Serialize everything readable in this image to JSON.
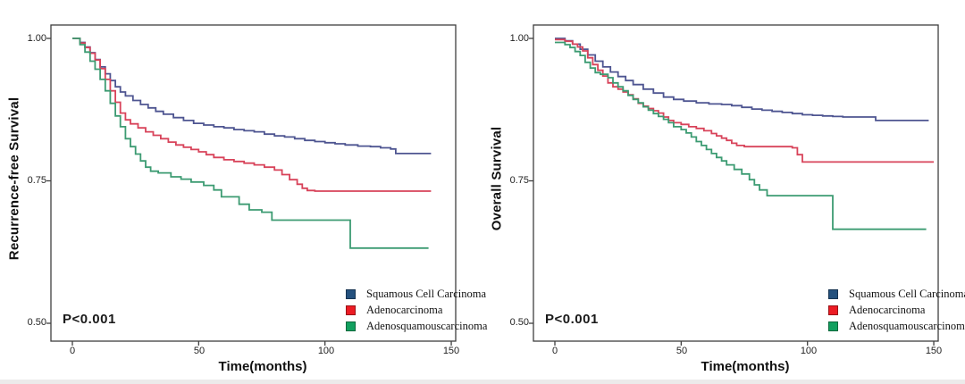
{
  "figure_colors": {
    "background": "#ffffff",
    "frame": "#3f3f3f"
  },
  "legend": {
    "items": [
      {
        "label": "Squamous Cell Carcinoma",
        "swatch_color": "#24517e",
        "line_color": "#4e5591"
      },
      {
        "label": "Adenocarcinoma",
        "swatch_color": "#ec1c24",
        "line_color": "#d8435a"
      },
      {
        "label": "Adenosquamouscarcinoma",
        "swatch_color": "#12a05f",
        "line_color": "#3c9b72"
      }
    ]
  },
  "chart_data": [
    {
      "type": "line",
      "subtype": "kaplan-meier-step",
      "ylabel": "Recurrence-free Survival",
      "xlabel": "Time(months)",
      "annotation": "P<0.001",
      "x_tick_labels": [
        "0",
        "50",
        "100",
        "150"
      ],
      "y_tick_labels": [
        "1.00",
        "0.75",
        "0.50"
      ],
      "x_ticks": [
        0,
        50,
        100,
        150
      ],
      "y_ticks": [
        1.0,
        0.75,
        0.5
      ],
      "xlim": [
        -8,
        152
      ],
      "ylim": [
        0.468,
        1.023
      ],
      "grid": false,
      "legend_position": "lower-right",
      "series": [
        {
          "name": "Squamous Cell Carcinoma",
          "points": [
            [
              0,
              1.0
            ],
            [
              3,
              0.993
            ],
            [
              5,
              0.985
            ],
            [
              7,
              0.975
            ],
            [
              9,
              0.963
            ],
            [
              11,
              0.95
            ],
            [
              13,
              0.938
            ],
            [
              15,
              0.926
            ],
            [
              17,
              0.915
            ],
            [
              19,
              0.906
            ],
            [
              21,
              0.899
            ],
            [
              24,
              0.891
            ],
            [
              27,
              0.884
            ],
            [
              30,
              0.878
            ],
            [
              33,
              0.872
            ],
            [
              36,
              0.867
            ],
            [
              40,
              0.861
            ],
            [
              44,
              0.856
            ],
            [
              48,
              0.851
            ],
            [
              52,
              0.848
            ],
            [
              56,
              0.845
            ],
            [
              60,
              0.843
            ],
            [
              64,
              0.84
            ],
            [
              68,
              0.838
            ],
            [
              72,
              0.836
            ],
            [
              76,
              0.832
            ],
            [
              80,
              0.829
            ],
            [
              84,
              0.827
            ],
            [
              88,
              0.824
            ],
            [
              92,
              0.821
            ],
            [
              96,
              0.819
            ],
            [
              100,
              0.817
            ],
            [
              104,
              0.815
            ],
            [
              108,
              0.813
            ],
            [
              113,
              0.811
            ],
            [
              118,
              0.81
            ],
            [
              122,
              0.808
            ],
            [
              126,
              0.806
            ],
            [
              128,
              0.798
            ],
            [
              142,
              0.798
            ]
          ]
        },
        {
          "name": "Adenocarcinoma",
          "points": [
            [
              0,
              1.0
            ],
            [
              3,
              0.992
            ],
            [
              5,
              0.984
            ],
            [
              7,
              0.974
            ],
            [
              9,
              0.962
            ],
            [
              11,
              0.947
            ],
            [
              13,
              0.928
            ],
            [
              15,
              0.908
            ],
            [
              17,
              0.888
            ],
            [
              19,
              0.869
            ],
            [
              21,
              0.857
            ],
            [
              23,
              0.85
            ],
            [
              26,
              0.843
            ],
            [
              29,
              0.836
            ],
            [
              32,
              0.83
            ],
            [
              35,
              0.824
            ],
            [
              38,
              0.818
            ],
            [
              41,
              0.813
            ],
            [
              44,
              0.809
            ],
            [
              47,
              0.805
            ],
            [
              50,
              0.801
            ],
            [
              53,
              0.796
            ],
            [
              56,
              0.791
            ],
            [
              60,
              0.787
            ],
            [
              64,
              0.784
            ],
            [
              68,
              0.781
            ],
            [
              72,
              0.778
            ],
            [
              76,
              0.774
            ],
            [
              80,
              0.769
            ],
            [
              83,
              0.761
            ],
            [
              86,
              0.752
            ],
            [
              89,
              0.744
            ],
            [
              91,
              0.737
            ],
            [
              93,
              0.733
            ],
            [
              96,
              0.732
            ],
            [
              142,
              0.732
            ]
          ]
        },
        {
          "name": "Adenosquamouscarcinoma",
          "points": [
            [
              0,
              1.0
            ],
            [
              3,
              0.989
            ],
            [
              5,
              0.976
            ],
            [
              7,
              0.96
            ],
            [
              9,
              0.946
            ],
            [
              11,
              0.928
            ],
            [
              13,
              0.908
            ],
            [
              15,
              0.886
            ],
            [
              17,
              0.864
            ],
            [
              19,
              0.845
            ],
            [
              21,
              0.824
            ],
            [
              23,
              0.81
            ],
            [
              25,
              0.797
            ],
            [
              27,
              0.785
            ],
            [
              29,
              0.774
            ],
            [
              31,
              0.767
            ],
            [
              34,
              0.764
            ],
            [
              39,
              0.757
            ],
            [
              43,
              0.753
            ],
            [
              47,
              0.748
            ],
            [
              52,
              0.742
            ],
            [
              56,
              0.734
            ],
            [
              59,
              0.722
            ],
            [
              66,
              0.709
            ],
            [
              70,
              0.699
            ],
            [
              75,
              0.695
            ],
            [
              79,
              0.681
            ],
            [
              108,
              0.681
            ],
            [
              110,
              0.632
            ],
            [
              141,
              0.632
            ]
          ]
        }
      ]
    },
    {
      "type": "line",
      "subtype": "kaplan-meier-step",
      "ylabel": "Overall Survival",
      "xlabel": "Time(months)",
      "annotation": "P<0.001",
      "x_tick_labels": [
        "0",
        "50",
        "100",
        "150"
      ],
      "y_tick_labels": [
        "1.00",
        "0.75",
        "0.50"
      ],
      "x_ticks": [
        0,
        50,
        100,
        150
      ],
      "y_ticks": [
        1.0,
        0.75,
        0.5
      ],
      "xlim": [
        -8,
        152
      ],
      "ylim": [
        0.468,
        1.023
      ],
      "grid": false,
      "legend_position": "lower-right",
      "series": [
        {
          "name": "Squamous Cell Carcinoma",
          "points": [
            [
              0,
              1.0
            ],
            [
              4,
              0.996
            ],
            [
              7,
              0.99
            ],
            [
              10,
              0.981
            ],
            [
              13,
              0.971
            ],
            [
              16,
              0.96
            ],
            [
              19,
              0.95
            ],
            [
              22,
              0.941
            ],
            [
              25,
              0.933
            ],
            [
              28,
              0.926
            ],
            [
              31,
              0.919
            ],
            [
              35,
              0.911
            ],
            [
              39,
              0.904
            ],
            [
              43,
              0.897
            ],
            [
              47,
              0.893
            ],
            [
              51,
              0.89
            ],
            [
              56,
              0.887
            ],
            [
              61,
              0.885
            ],
            [
              66,
              0.884
            ],
            [
              70,
              0.882
            ],
            [
              74,
              0.879
            ],
            [
              78,
              0.876
            ],
            [
              82,
              0.874
            ],
            [
              86,
              0.872
            ],
            [
              90,
              0.87
            ],
            [
              94,
              0.868
            ],
            [
              98,
              0.866
            ],
            [
              102,
              0.865
            ],
            [
              106,
              0.864
            ],
            [
              110,
              0.863
            ],
            [
              114,
              0.862
            ],
            [
              127,
              0.856
            ],
            [
              148,
              0.856
            ]
          ]
        },
        {
          "name": "Adenocarcinoma",
          "points": [
            [
              0,
              0.998
            ],
            [
              4,
              0.995
            ],
            [
              7,
              0.99
            ],
            [
              9,
              0.985
            ],
            [
              11,
              0.978
            ],
            [
              13,
              0.966
            ],
            [
              15,
              0.954
            ],
            [
              17,
              0.944
            ],
            [
              19,
              0.934
            ],
            [
              21,
              0.922
            ],
            [
              23,
              0.915
            ],
            [
              25,
              0.911
            ],
            [
              27,
              0.906
            ],
            [
              29,
              0.901
            ],
            [
              31,
              0.894
            ],
            [
              33,
              0.886
            ],
            [
              35,
              0.881
            ],
            [
              37,
              0.877
            ],
            [
              39,
              0.873
            ],
            [
              41,
              0.869
            ],
            [
              43,
              0.862
            ],
            [
              45,
              0.856
            ],
            [
              47,
              0.852
            ],
            [
              50,
              0.849
            ],
            [
              53,
              0.845
            ],
            [
              56,
              0.842
            ],
            [
              59,
              0.838
            ],
            [
              62,
              0.833
            ],
            [
              64,
              0.829
            ],
            [
              66,
              0.825
            ],
            [
              68,
              0.821
            ],
            [
              70,
              0.816
            ],
            [
              72,
              0.812
            ],
            [
              75,
              0.81
            ],
            [
              94,
              0.808
            ],
            [
              96,
              0.796
            ],
            [
              98,
              0.783
            ],
            [
              150,
              0.783
            ]
          ]
        },
        {
          "name": "Adenosquamouscarcinoma",
          "points": [
            [
              0,
              0.993
            ],
            [
              4,
              0.989
            ],
            [
              6,
              0.984
            ],
            [
              8,
              0.977
            ],
            [
              10,
              0.97
            ],
            [
              12,
              0.958
            ],
            [
              14,
              0.948
            ],
            [
              16,
              0.94
            ],
            [
              18,
              0.937
            ],
            [
              21,
              0.931
            ],
            [
              23,
              0.922
            ],
            [
              25,
              0.915
            ],
            [
              27,
              0.908
            ],
            [
              29,
              0.9
            ],
            [
              31,
              0.893
            ],
            [
              33,
              0.887
            ],
            [
              35,
              0.88
            ],
            [
              37,
              0.874
            ],
            [
              39,
              0.868
            ],
            [
              41,
              0.863
            ],
            [
              43,
              0.858
            ],
            [
              45,
              0.852
            ],
            [
              47,
              0.845
            ],
            [
              50,
              0.84
            ],
            [
              52,
              0.834
            ],
            [
              54,
              0.827
            ],
            [
              56,
              0.819
            ],
            [
              58,
              0.812
            ],
            [
              60,
              0.805
            ],
            [
              62,
              0.798
            ],
            [
              64,
              0.791
            ],
            [
              66,
              0.785
            ],
            [
              68,
              0.778
            ],
            [
              71,
              0.77
            ],
            [
              74,
              0.762
            ],
            [
              77,
              0.752
            ],
            [
              79,
              0.743
            ],
            [
              81,
              0.734
            ],
            [
              84,
              0.724
            ],
            [
              108,
              0.724
            ],
            [
              110,
              0.665
            ],
            [
              147,
              0.665
            ]
          ]
        }
      ]
    }
  ]
}
